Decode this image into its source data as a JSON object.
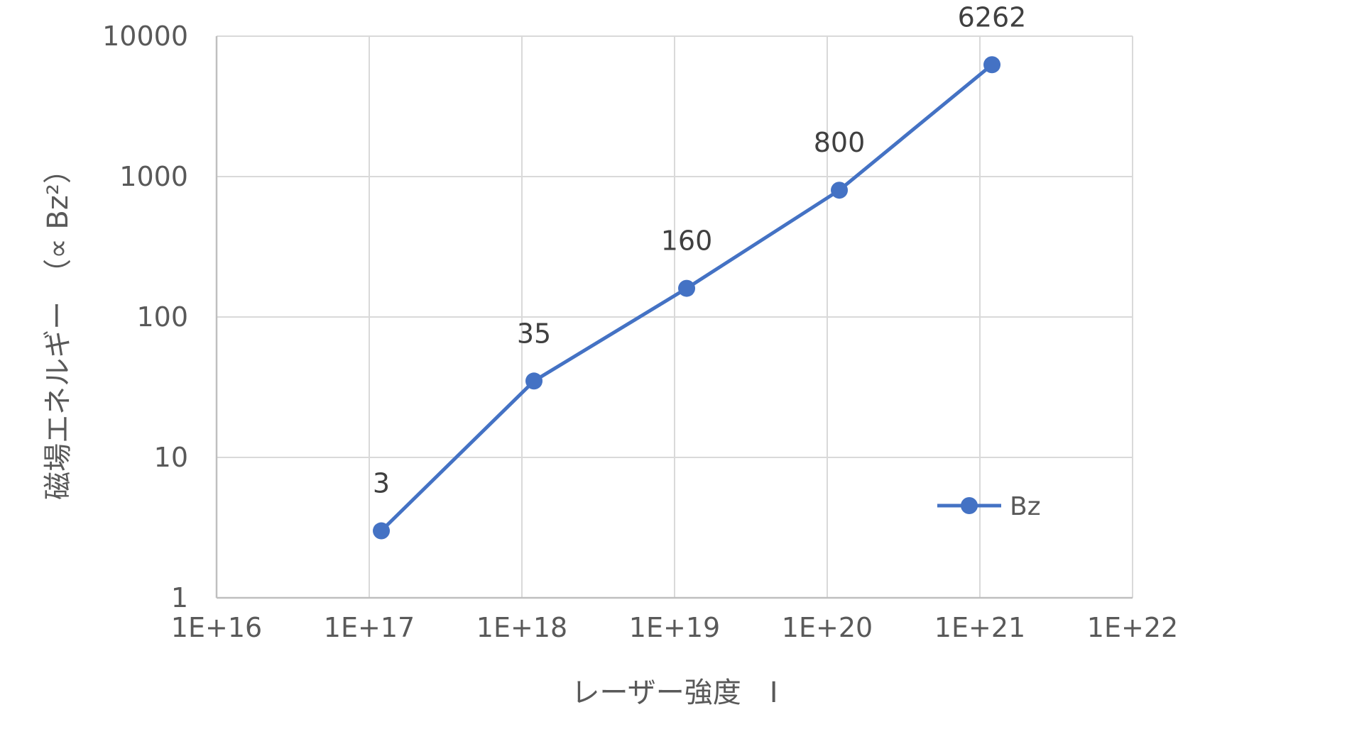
{
  "chart_data": {
    "type": "line",
    "title": "",
    "xlabel": "レーザー強度　I",
    "ylabel": "磁場エネルギー　（∝ Bz²）",
    "x_scale": "log",
    "y_scale": "log",
    "xlim": [
      1e+16,
      1e+22
    ],
    "ylim": [
      1,
      10000
    ],
    "x_ticks": [
      "1E+16",
      "1E+17",
      "1E+18",
      "1E+19",
      "1E+20",
      "1E+21",
      "1E+22"
    ],
    "y_ticks": [
      "1",
      "10",
      "100",
      "1000",
      "10000"
    ],
    "grid": true,
    "legend_position": "bottom-right",
    "series": [
      {
        "name": "Bz",
        "color": "#4472C4",
        "marker": "circle",
        "x": [
          1.2e+17,
          1.2e+18,
          1.2e+19,
          1.2e+20,
          1.2e+21
        ],
        "y": [
          3,
          35,
          160,
          800,
          6262
        ],
        "labels": [
          "3",
          "35",
          "160",
          "800",
          "6262"
        ]
      }
    ]
  }
}
